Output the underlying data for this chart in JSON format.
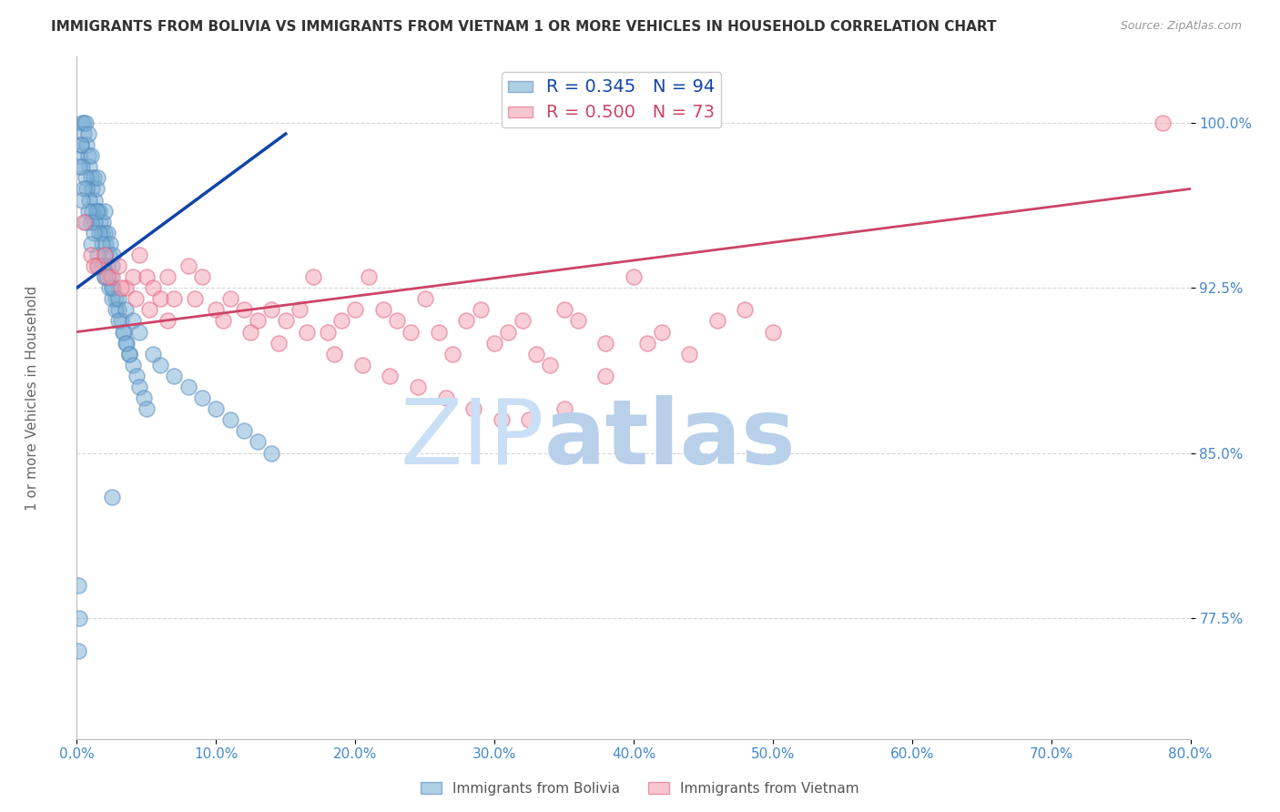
{
  "title": "IMMIGRANTS FROM BOLIVIA VS IMMIGRANTS FROM VIETNAM 1 OR MORE VEHICLES IN HOUSEHOLD CORRELATION CHART",
  "source": "Source: ZipAtlas.com",
  "ylabel": "1 or more Vehicles in Household",
  "xlim": [
    0.0,
    80.0
  ],
  "ylim": [
    72.0,
    103.0
  ],
  "yticks": [
    77.5,
    85.0,
    92.5,
    100.0
  ],
  "xticks": [
    0.0,
    10.0,
    20.0,
    30.0,
    40.0,
    50.0,
    60.0,
    70.0,
    80.0
  ],
  "bolivia_R": 0.345,
  "bolivia_N": 94,
  "vietnam_R": 0.5,
  "vietnam_N": 73,
  "bolivia_color": "#7bafd4",
  "vietnam_color": "#f4a0b0",
  "bolivia_edge_color": "#5588bb",
  "vietnam_edge_color": "#e06080",
  "bolivia_line_color": "#1144aa",
  "vietnam_line_color": "#cc4466",
  "title_color": "#333333",
  "tick_color": "#4488cc",
  "watermark_zip_color": "#d5e8f5",
  "watermark_atlas_color": "#c8dff0",
  "background_color": "#ffffff",
  "grid_color": "#cccccc",
  "bolivia_x": [
    0.2,
    0.3,
    0.4,
    0.5,
    0.5,
    0.6,
    0.7,
    0.8,
    0.8,
    0.9,
    1.0,
    1.0,
    1.1,
    1.2,
    1.3,
    1.4,
    1.5,
    1.5,
    1.6,
    1.7,
    1.8,
    1.9,
    2.0,
    2.0,
    2.1,
    2.2,
    2.3,
    2.4,
    2.5,
    2.6,
    0.3,
    0.4,
    0.6,
    0.7,
    0.9,
    1.1,
    1.3,
    1.4,
    1.6,
    1.8,
    2.0,
    2.2,
    2.4,
    2.6,
    2.8,
    3.0,
    3.2,
    3.4,
    3.6,
    3.8,
    0.2,
    0.5,
    0.8,
    1.0,
    1.2,
    1.5,
    1.8,
    2.0,
    2.3,
    2.5,
    2.8,
    3.0,
    3.3,
    3.5,
    3.8,
    4.0,
    4.3,
    4.5,
    4.8,
    5.0,
    0.4,
    0.6,
    1.0,
    1.5,
    2.0,
    2.5,
    3.0,
    3.5,
    4.0,
    4.5,
    5.5,
    6.0,
    7.0,
    8.0,
    9.0,
    10.0,
    11.0,
    12.0,
    13.0,
    14.0,
    0.1,
    0.1,
    0.2,
    2.5
  ],
  "bolivia_y": [
    98.5,
    99.0,
    100.0,
    100.0,
    99.5,
    100.0,
    99.0,
    98.5,
    99.5,
    98.0,
    97.5,
    98.5,
    97.0,
    97.5,
    96.5,
    97.0,
    96.0,
    97.5,
    96.0,
    95.5,
    95.0,
    95.5,
    95.0,
    96.0,
    94.5,
    95.0,
    94.0,
    94.5,
    93.5,
    94.0,
    99.0,
    98.0,
    97.5,
    97.0,
    96.5,
    96.0,
    95.5,
    96.0,
    95.0,
    94.5,
    94.0,
    93.5,
    93.0,
    92.5,
    92.0,
    91.5,
    91.0,
    90.5,
    90.0,
    89.5,
    98.0,
    97.0,
    96.0,
    95.5,
    95.0,
    94.0,
    93.5,
    93.0,
    92.5,
    92.0,
    91.5,
    91.0,
    90.5,
    90.0,
    89.5,
    89.0,
    88.5,
    88.0,
    87.5,
    87.0,
    96.5,
    95.5,
    94.5,
    93.5,
    93.0,
    92.5,
    92.0,
    91.5,
    91.0,
    90.5,
    89.5,
    89.0,
    88.5,
    88.0,
    87.5,
    87.0,
    86.5,
    86.0,
    85.5,
    85.0,
    79.0,
    76.0,
    77.5,
    83.0
  ],
  "vietnam_x": [
    0.5,
    1.0,
    1.5,
    2.0,
    2.5,
    3.0,
    3.5,
    4.0,
    4.5,
    5.0,
    5.5,
    6.0,
    6.5,
    7.0,
    8.0,
    9.0,
    10.0,
    11.0,
    12.0,
    13.0,
    14.0,
    15.0,
    16.0,
    17.0,
    18.0,
    19.0,
    20.0,
    21.0,
    22.0,
    23.0,
    24.0,
    25.0,
    26.0,
    27.0,
    28.0,
    29.0,
    30.0,
    31.0,
    32.0,
    33.0,
    34.0,
    35.0,
    36.0,
    38.0,
    40.0,
    42.0,
    44.0,
    46.0,
    48.0,
    50.0,
    1.2,
    2.2,
    3.2,
    4.2,
    5.2,
    6.5,
    8.5,
    10.5,
    12.5,
    14.5,
    16.5,
    18.5,
    20.5,
    22.5,
    24.5,
    26.5,
    28.5,
    30.5,
    32.5,
    35.0,
    38.0,
    41.0,
    78.0
  ],
  "vietnam_y": [
    95.5,
    94.0,
    93.5,
    94.0,
    93.0,
    93.5,
    92.5,
    93.0,
    94.0,
    93.0,
    92.5,
    92.0,
    93.0,
    92.0,
    93.5,
    93.0,
    91.5,
    92.0,
    91.5,
    91.0,
    91.5,
    91.0,
    91.5,
    93.0,
    90.5,
    91.0,
    91.5,
    93.0,
    91.5,
    91.0,
    90.5,
    92.0,
    90.5,
    89.5,
    91.0,
    91.5,
    90.0,
    90.5,
    91.0,
    89.5,
    89.0,
    91.5,
    91.0,
    90.0,
    93.0,
    90.5,
    89.5,
    91.0,
    91.5,
    90.5,
    93.5,
    93.0,
    92.5,
    92.0,
    91.5,
    91.0,
    92.0,
    91.0,
    90.5,
    90.0,
    90.5,
    89.5,
    89.0,
    88.5,
    88.0,
    87.5,
    87.0,
    86.5,
    86.5,
    87.0,
    88.5,
    90.0,
    100.0
  ],
  "bolivia_trendline_x": [
    0.0,
    15.0
  ],
  "bolivia_trendline_y": [
    92.5,
    99.5
  ],
  "vietnam_trendline_x": [
    0.0,
    80.0
  ],
  "vietnam_trendline_y": [
    90.5,
    97.0
  ]
}
